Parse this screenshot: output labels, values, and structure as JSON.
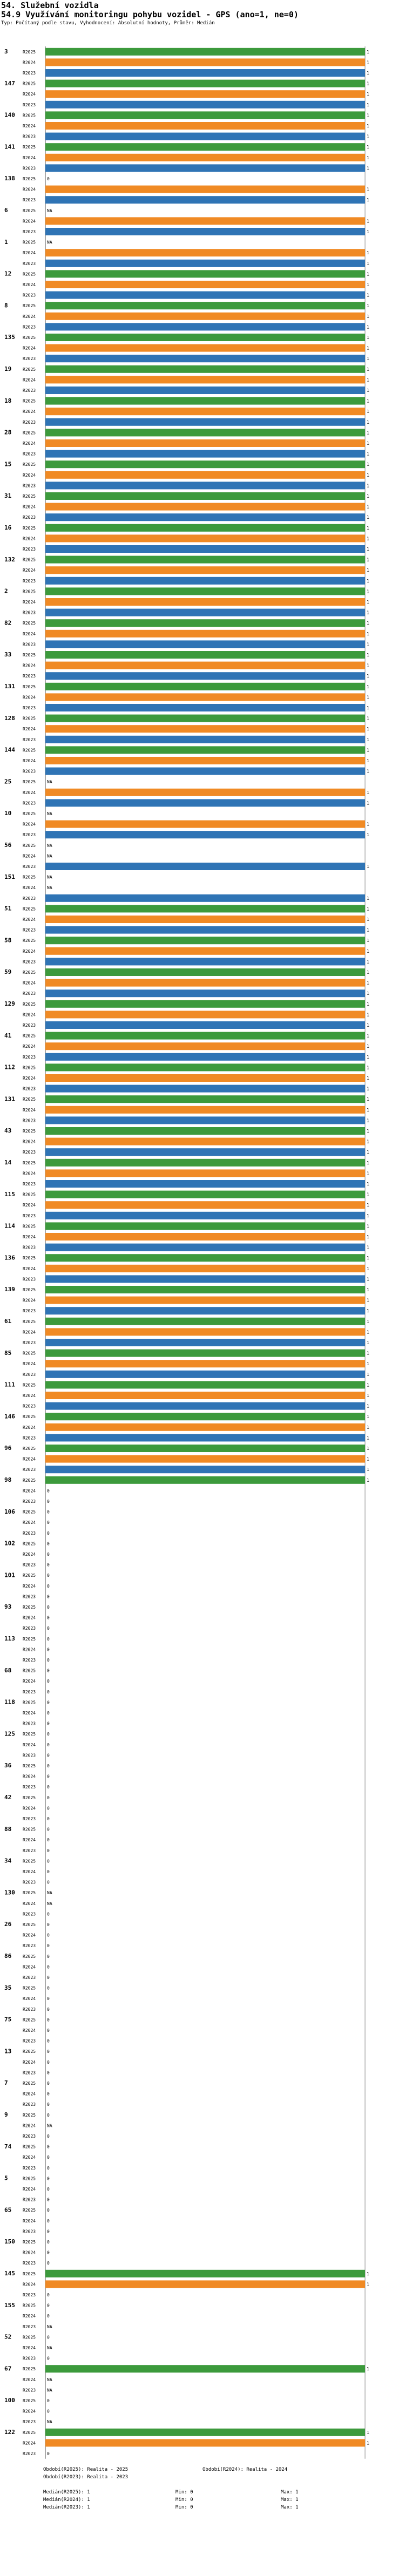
{
  "header": {
    "title": "54. Služební vozidla",
    "subtitle": "54.9 Využívání monitoringu pohybu vozidel - GPS (ano=1, ne=0)",
    "description": "Typ: Počítaný podle stavu, Vyhodnocení: Absolutní hodnoty, Průměr: Medián"
  },
  "chart_data": {
    "type": "bar",
    "orientation": "horizontal",
    "xlim": [
      0,
      1
    ],
    "series_names": [
      "R2025",
      "R2024",
      "R2023"
    ],
    "series_colors": [
      "#3c9a3c",
      "#f08a24",
      "#2f74b5"
    ],
    "groups": [
      {
        "label": "3",
        "values": [
          1,
          1,
          1
        ]
      },
      {
        "label": "147",
        "values": [
          1,
          1,
          1
        ]
      },
      {
        "label": "140",
        "values": [
          1,
          1,
          1
        ]
      },
      {
        "label": "141",
        "values": [
          1,
          1,
          1
        ]
      },
      {
        "label": "138",
        "values": [
          0,
          1,
          1
        ]
      },
      {
        "label": "6",
        "values": [
          "NA",
          1,
          1
        ]
      },
      {
        "label": "1",
        "values": [
          "NA",
          1,
          1
        ]
      },
      {
        "label": "12",
        "values": [
          1,
          1,
          1
        ]
      },
      {
        "label": "8",
        "values": [
          1,
          1,
          1
        ]
      },
      {
        "label": "135",
        "values": [
          1,
          1,
          1
        ]
      },
      {
        "label": "19",
        "values": [
          1,
          1,
          1
        ]
      },
      {
        "label": "18",
        "values": [
          1,
          1,
          1
        ]
      },
      {
        "label": "28",
        "values": [
          1,
          1,
          1
        ]
      },
      {
        "label": "15",
        "values": [
          1,
          1,
          1
        ]
      },
      {
        "label": "31",
        "values": [
          1,
          1,
          1
        ]
      },
      {
        "label": "16",
        "values": [
          1,
          1,
          1
        ]
      },
      {
        "label": "132",
        "values": [
          1,
          1,
          1
        ]
      },
      {
        "label": "2",
        "values": [
          1,
          1,
          1
        ]
      },
      {
        "label": "82",
        "values": [
          1,
          1,
          1
        ]
      },
      {
        "label": "33",
        "values": [
          1,
          1,
          1
        ]
      },
      {
        "label": "131",
        "values": [
          1,
          1,
          1
        ]
      },
      {
        "label": "128",
        "values": [
          1,
          1,
          1
        ]
      },
      {
        "label": "144",
        "values": [
          1,
          1,
          1
        ]
      },
      {
        "label": "25",
        "values": [
          "NA",
          1,
          1
        ]
      },
      {
        "label": "10",
        "values": [
          "NA",
          1,
          1
        ]
      },
      {
        "label": "56",
        "values": [
          "NA",
          "NA",
          1
        ]
      },
      {
        "label": "151",
        "values": [
          "NA",
          "NA",
          1
        ]
      },
      {
        "label": "51",
        "values": [
          1,
          1,
          1
        ]
      },
      {
        "label": "58",
        "values": [
          1,
          1,
          1
        ]
      },
      {
        "label": "59",
        "values": [
          1,
          1,
          1
        ]
      },
      {
        "label": "129",
        "values": [
          1,
          1,
          1
        ]
      },
      {
        "label": "41",
        "values": [
          1,
          1,
          1
        ]
      },
      {
        "label": "112",
        "values": [
          1,
          1,
          1
        ]
      },
      {
        "label": "131",
        "values": [
          1,
          1,
          1
        ]
      },
      {
        "label": "43",
        "values": [
          1,
          1,
          1
        ]
      },
      {
        "label": "14",
        "values": [
          1,
          1,
          1
        ]
      },
      {
        "label": "115",
        "values": [
          1,
          1,
          1
        ]
      },
      {
        "label": "114",
        "values": [
          1,
          1,
          1
        ]
      },
      {
        "label": "136",
        "values": [
          1,
          1,
          1
        ]
      },
      {
        "label": "139",
        "values": [
          1,
          1,
          1
        ]
      },
      {
        "label": "61",
        "values": [
          1,
          1,
          1
        ]
      },
      {
        "label": "85",
        "values": [
          1,
          1,
          1
        ]
      },
      {
        "label": "111",
        "values": [
          1,
          1,
          1
        ]
      },
      {
        "label": "146",
        "values": [
          1,
          1,
          1
        ]
      },
      {
        "label": "96",
        "values": [
          1,
          1,
          1
        ]
      },
      {
        "label": "98",
        "values": [
          1,
          0,
          0
        ]
      },
      {
        "label": "106",
        "values": [
          0,
          0,
          0
        ]
      },
      {
        "label": "102",
        "values": [
          0,
          0,
          0
        ]
      },
      {
        "label": "101",
        "values": [
          0,
          0,
          0
        ]
      },
      {
        "label": "93",
        "values": [
          0,
          0,
          0
        ]
      },
      {
        "label": "113",
        "values": [
          0,
          0,
          0
        ]
      },
      {
        "label": "68",
        "values": [
          0,
          0,
          0
        ]
      },
      {
        "label": "118",
        "values": [
          0,
          0,
          0
        ]
      },
      {
        "label": "125",
        "values": [
          0,
          0,
          0
        ]
      },
      {
        "label": "36",
        "values": [
          0,
          0,
          0
        ]
      },
      {
        "label": "42",
        "values": [
          0,
          0,
          0
        ]
      },
      {
        "label": "88",
        "values": [
          0,
          0,
          0
        ]
      },
      {
        "label": "34",
        "values": [
          0,
          0,
          0
        ]
      },
      {
        "label": "130",
        "values": [
          "NA",
          "NA",
          0
        ]
      },
      {
        "label": "26",
        "values": [
          0,
          0,
          0
        ]
      },
      {
        "label": "86",
        "values": [
          0,
          0,
          0
        ]
      },
      {
        "label": "35",
        "values": [
          0,
          0,
          0
        ]
      },
      {
        "label": "75",
        "values": [
          0,
          0,
          0
        ]
      },
      {
        "label": "13",
        "values": [
          0,
          0,
          0
        ]
      },
      {
        "label": "7",
        "values": [
          0,
          0,
          0
        ]
      },
      {
        "label": "9",
        "values": [
          0,
          "NA",
          0
        ]
      },
      {
        "label": "74",
        "values": [
          0,
          0,
          0
        ]
      },
      {
        "label": "5",
        "values": [
          0,
          0,
          0
        ]
      },
      {
        "label": "65",
        "values": [
          0,
          0,
          0
        ]
      },
      {
        "label": "150",
        "values": [
          0,
          0,
          0
        ]
      },
      {
        "label": "145",
        "values": [
          1,
          1,
          0
        ]
      },
      {
        "label": "155",
        "values": [
          0,
          0,
          "NA"
        ]
      },
      {
        "label": "52",
        "values": [
          0,
          "NA",
          0
        ]
      },
      {
        "label": "67",
        "values": [
          1,
          "NA",
          "NA"
        ]
      },
      {
        "label": "100",
        "values": [
          0,
          0,
          "NA"
        ]
      },
      {
        "label": "122",
        "values": [
          1,
          1,
          0
        ]
      }
    ]
  },
  "legend": {
    "col1_line1": "Období(R2025): Realita - 2025",
    "col1_line2": "Období(R2023): Realita - 2023",
    "col2_line1": "Období(R2024): Realita - 2024",
    "rows": [
      {
        "median": "Medián(R2025): 1",
        "min": "Min: 0",
        "max": "Max: 1"
      },
      {
        "median": "Medián(R2024): 1",
        "min": "Min: 0",
        "max": "Max: 1"
      },
      {
        "median": "Medián(R2023): 1",
        "min": "Min: 0",
        "max": "Max: 1"
      }
    ]
  }
}
